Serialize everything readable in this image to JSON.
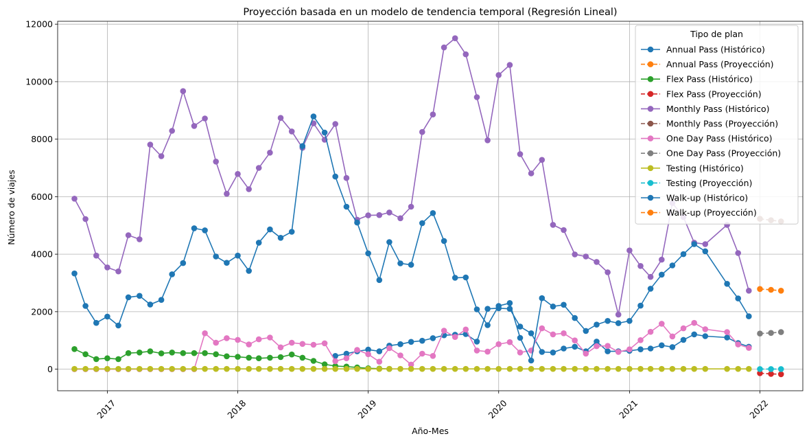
{
  "chart_data": {
    "type": "line",
    "title": "Proyección basada en un modelo de tendencia temporal (Regresión Lineal)",
    "xlabel": "Año-Mes",
    "ylabel": "Número de viajes",
    "xlim": [
      "2016-08-15",
      "2022-05-01"
    ],
    "ylim": [
      -750,
      12100
    ],
    "x_ticks": [
      "2017-01-01",
      "2018-01-01",
      "2019-01-01",
      "2020-01-01",
      "2021-01-01",
      "2022-01-01"
    ],
    "x_tick_labels": [
      "2017",
      "2018",
      "2019",
      "2020",
      "2021",
      "2022"
    ],
    "y_ticks": [
      0,
      2000,
      4000,
      6000,
      8000,
      10000,
      12000
    ],
    "y_tick_labels": [
      "0",
      "2000",
      "4000",
      "6000",
      "8000",
      "10000",
      "12000"
    ],
    "grid": true,
    "legend": {
      "title": "Tipo de plan",
      "placement": "top-right"
    },
    "series": [
      {
        "name": "Annual Pass (Histórico)",
        "color": "#1f77b4",
        "style": "solid",
        "x": [
          "2018-10",
          "2018-11",
          "2018-12",
          "2019-01",
          "2019-02",
          "2019-03",
          "2019-04",
          "2019-05",
          "2019-06",
          "2019-07",
          "2019-08",
          "2019-09",
          "2019-10",
          "2019-11",
          "2019-12",
          "2020-01",
          "2020-02",
          "2020-03",
          "2020-04",
          "2020-05",
          "2020-06",
          "2020-07",
          "2020-08",
          "2020-09",
          "2020-10",
          "2020-11",
          "2020-12",
          "2021-01",
          "2021-02",
          "2021-03",
          "2021-04",
          "2021-05",
          "2021-06",
          "2021-07",
          "2021-08",
          "2021-10",
          "2021-11",
          "2021-12"
        ],
        "values": [
          460,
          540,
          620,
          680,
          620,
          820,
          870,
          950,
          990,
          1080,
          1180,
          1200,
          1220,
          960,
          2100,
          2120,
          2100,
          1480,
          1250,
          600,
          580,
          720,
          780,
          620,
          960,
          620,
          620,
          640,
          690,
          720,
          830,
          770,
          1020,
          1210,
          1150,
          1100,
          910,
          780
        ]
      },
      {
        "name": "Annual Pass (Proyección)",
        "color": "#ff7f0e",
        "style": "dashed",
        "x": [],
        "values": []
      },
      {
        "name": "Flex Pass (Histórico)",
        "color": "#2ca02c",
        "style": "solid",
        "x": [
          "2016-10",
          "2016-11",
          "2016-12",
          "2017-01",
          "2017-02",
          "2017-03",
          "2017-04",
          "2017-05",
          "2017-06",
          "2017-07",
          "2017-08",
          "2017-09",
          "2017-10",
          "2017-11",
          "2017-12",
          "2018-01",
          "2018-02",
          "2018-03",
          "2018-04",
          "2018-05",
          "2018-06",
          "2018-07",
          "2018-08",
          "2018-09",
          "2018-10",
          "2018-11",
          "2018-12",
          "2019-01",
          "2019-02",
          "2019-03"
        ],
        "values": [
          700,
          520,
          350,
          380,
          350,
          560,
          580,
          620,
          550,
          580,
          560,
          560,
          560,
          520,
          450,
          430,
          400,
          380,
          400,
          420,
          510,
          400,
          290,
          170,
          110,
          90,
          60,
          30,
          20,
          10
        ]
      },
      {
        "name": "Flex Pass (Proyección)",
        "color": "#d62728",
        "style": "dashed",
        "x": [
          "2022-01",
          "2022-02",
          "2022-03"
        ],
        "values": [
          -140,
          -165,
          -175
        ]
      },
      {
        "name": "Monthly Pass (Histórico)",
        "color": "#9467bd",
        "style": "solid",
        "x": [
          "2016-10",
          "2016-11",
          "2016-12",
          "2017-01",
          "2017-02",
          "2017-03",
          "2017-04",
          "2017-05",
          "2017-06",
          "2017-07",
          "2017-08",
          "2017-09",
          "2017-10",
          "2017-11",
          "2017-12",
          "2018-01",
          "2018-02",
          "2018-03",
          "2018-04",
          "2018-05",
          "2018-06",
          "2018-07",
          "2018-08",
          "2018-09",
          "2018-10",
          "2018-11",
          "2018-12",
          "2019-01",
          "2019-02",
          "2019-03",
          "2019-04",
          "2019-05",
          "2019-06",
          "2019-07",
          "2019-08",
          "2019-09",
          "2019-10",
          "2019-11",
          "2019-12",
          "2020-01",
          "2020-02",
          "2020-03",
          "2020-04",
          "2020-05",
          "2020-06",
          "2020-07",
          "2020-08",
          "2020-09",
          "2020-10",
          "2020-11",
          "2020-12",
          "2021-01",
          "2021-02",
          "2021-03",
          "2021-04",
          "2021-05",
          "2021-06",
          "2021-07",
          "2021-08",
          "2021-10",
          "2021-11",
          "2021-12"
        ],
        "values": [
          5930,
          5220,
          3950,
          3540,
          3400,
          4660,
          4520,
          7810,
          7410,
          8290,
          9670,
          8460,
          8720,
          7220,
          6100,
          6790,
          6260,
          7000,
          7530,
          8740,
          8270,
          7700,
          8550,
          7980,
          8530,
          6650,
          5200,
          5350,
          5360,
          5450,
          5250,
          5650,
          8250,
          8860,
          11190,
          11510,
          10950,
          9460,
          7960,
          10230,
          10580,
          7480,
          6810,
          7280,
          5020,
          4840,
          3990,
          3920,
          3730,
          3370,
          1900,
          4130,
          3590,
          3210,
          3810,
          5780,
          5290,
          4400,
          4350,
          5020,
          4040,
          2730
        ]
      },
      {
        "name": "Monthly Pass (Proyección)",
        "color": "#8c564b",
        "style": "dashed",
        "x": [
          "2022-01",
          "2022-02",
          "2022-03"
        ],
        "values": [
          5230,
          5180,
          5140
        ]
      },
      {
        "name": "One Day Pass (Histórico)",
        "color": "#e377c2",
        "style": "solid",
        "x": [
          "2016-10",
          "2016-11",
          "2016-12",
          "2017-01",
          "2017-02",
          "2017-03",
          "2017-04",
          "2017-05",
          "2017-06",
          "2017-07",
          "2017-08",
          "2017-09",
          "2017-10",
          "2017-11",
          "2017-12",
          "2018-01",
          "2018-02",
          "2018-03",
          "2018-04",
          "2018-05",
          "2018-06",
          "2018-07",
          "2018-08",
          "2018-09",
          "2018-10",
          "2018-11",
          "2018-12",
          "2019-01",
          "2019-02",
          "2019-03",
          "2019-04",
          "2019-05",
          "2019-06",
          "2019-07",
          "2019-08",
          "2019-09",
          "2019-10",
          "2019-11",
          "2019-12",
          "2020-01",
          "2020-02",
          "2020-03",
          "2020-04",
          "2020-05",
          "2020-06",
          "2020-07",
          "2020-08",
          "2020-09",
          "2020-10",
          "2020-11",
          "2020-12",
          "2021-01",
          "2021-02",
          "2021-03",
          "2021-04",
          "2021-05",
          "2021-06",
          "2021-07",
          "2021-08",
          "2021-10",
          "2021-11",
          "2021-12"
        ],
        "values": [
          0,
          0,
          0,
          0,
          0,
          0,
          0,
          0,
          0,
          0,
          0,
          0,
          1250,
          920,
          1080,
          1020,
          860,
          1040,
          1100,
          760,
          920,
          880,
          850,
          900,
          280,
          380,
          670,
          520,
          260,
          730,
          480,
          160,
          540,
          460,
          1340,
          1120,
          1380,
          650,
          610,
          870,
          940,
          580,
          650,
          1420,
          1210,
          1250,
          1000,
          540,
          800,
          810,
          600,
          690,
          1010,
          1300,
          1580,
          1140,
          1420,
          1610,
          1390,
          1290,
          860,
          740
        ]
      },
      {
        "name": "One Day Pass (Proyección)",
        "color": "#7f7f7f",
        "style": "dashed",
        "x": [
          "2022-01",
          "2022-02",
          "2022-03"
        ],
        "values": [
          1240,
          1260,
          1290
        ]
      },
      {
        "name": "Testing (Histórico)",
        "color": "#bcbd22",
        "style": "solid",
        "x": [
          "2016-10",
          "2016-11",
          "2016-12",
          "2017-01",
          "2017-02",
          "2017-03",
          "2017-04",
          "2017-05",
          "2017-06",
          "2017-07",
          "2017-08",
          "2017-09",
          "2017-10",
          "2017-11",
          "2017-12",
          "2018-01",
          "2018-02",
          "2018-03",
          "2018-04",
          "2018-05",
          "2018-06",
          "2018-07",
          "2018-08",
          "2018-09",
          "2018-10",
          "2018-11",
          "2018-12",
          "2019-01",
          "2019-02",
          "2019-03",
          "2019-04",
          "2019-05",
          "2019-06",
          "2019-07",
          "2019-08",
          "2019-09",
          "2019-10",
          "2019-11",
          "2019-12",
          "2020-01",
          "2020-02",
          "2020-03",
          "2020-04",
          "2020-05",
          "2020-06",
          "2020-07",
          "2020-08",
          "2020-09",
          "2020-10",
          "2020-11",
          "2020-12",
          "2021-01",
          "2021-02",
          "2021-03",
          "2021-04",
          "2021-05",
          "2021-06",
          "2021-07",
          "2021-08",
          "2021-10",
          "2021-11",
          "2021-12"
        ],
        "values": [
          10,
          10,
          10,
          10,
          10,
          10,
          10,
          10,
          10,
          10,
          10,
          10,
          10,
          10,
          10,
          10,
          10,
          10,
          10,
          10,
          10,
          10,
          10,
          10,
          10,
          10,
          10,
          10,
          10,
          10,
          10,
          10,
          10,
          10,
          10,
          10,
          10,
          10,
          10,
          10,
          10,
          10,
          10,
          10,
          10,
          10,
          10,
          10,
          10,
          10,
          10,
          10,
          10,
          10,
          10,
          10,
          10,
          10,
          10,
          10,
          10,
          10
        ]
      },
      {
        "name": "Testing (Proyección)",
        "color": "#17becf",
        "style": "dashed",
        "x": [
          "2022-01",
          "2022-02",
          "2022-03"
        ],
        "values": [
          5,
          5,
          5
        ]
      },
      {
        "name": "Walk-up (Histórico)",
        "color": "#1f77b4",
        "style": "solid",
        "x": [
          "2016-10",
          "2016-11",
          "2016-12",
          "2017-01",
          "2017-02",
          "2017-03",
          "2017-04",
          "2017-05",
          "2017-06",
          "2017-07",
          "2017-08",
          "2017-09",
          "2017-10",
          "2017-11",
          "2017-12",
          "2018-01",
          "2018-02",
          "2018-03",
          "2018-04",
          "2018-05",
          "2018-06",
          "2018-07",
          "2018-08",
          "2018-09",
          "2018-10",
          "2018-11",
          "2018-12",
          "2019-01",
          "2019-02",
          "2019-03",
          "2019-04",
          "2019-05",
          "2019-06",
          "2019-07",
          "2019-08",
          "2019-09",
          "2019-10",
          "2019-11",
          "2019-12",
          "2020-01",
          "2020-02",
          "2020-03",
          "2020-04",
          "2020-05",
          "2020-06",
          "2020-07",
          "2020-08",
          "2020-09",
          "2020-10",
          "2020-11",
          "2020-12",
          "2021-01",
          "2021-02",
          "2021-03",
          "2021-04",
          "2021-05",
          "2021-06",
          "2021-07",
          "2021-08",
          "2021-10",
          "2021-11",
          "2021-12"
        ],
        "values": [
          3330,
          2200,
          1610,
          1830,
          1520,
          2500,
          2550,
          2250,
          2410,
          3300,
          3690,
          4900,
          4830,
          3920,
          3700,
          3950,
          3420,
          4400,
          4860,
          4570,
          4780,
          7760,
          8790,
          8230,
          6700,
          5650,
          5100,
          4030,
          3100,
          4420,
          3680,
          3630,
          5080,
          5430,
          4460,
          3180,
          3190,
          2080,
          1530,
          2200,
          2300,
          1090,
          300,
          2470,
          2180,
          2240,
          1780,
          1330,
          1550,
          1680,
          1600,
          1680,
          2210,
          2800,
          3290,
          3610,
          4000,
          4350,
          4100,
          2970,
          2460,
          1840
        ]
      },
      {
        "name": "Walk-up (Proyección)",
        "color": "#ff7f0e",
        "style": "dashed",
        "x": [
          "2022-01",
          "2022-02",
          "2022-03"
        ],
        "values": [
          2790,
          2760,
          2730
        ]
      }
    ]
  }
}
